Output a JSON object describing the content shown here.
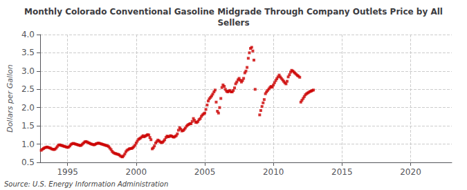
{
  "chart_data": {
    "type": "scatter",
    "title": "Monthly Colorado Conventional Gasoline Midgrade Through Company Outlets Price by All\nSellers",
    "ylabel": "Dollars per Gallon",
    "annotation": "Source: U.S. Energy Information Administration",
    "color": "#cc0000",
    "marker": "square",
    "grid": true,
    "xlim": [
      1993.0,
      2023.0
    ],
    "ylim": [
      0.5,
      4.0
    ],
    "xticks": [
      1995,
      2000,
      2005,
      2010,
      2015,
      2020
    ],
    "yticks": [
      0.5,
      {
        "value": 1.0,
        "label": "1.0"
      },
      1.5,
      {
        "value": 2.0,
        "label": "2.0"
      },
      2.5,
      {
        "value": 3.0,
        "label": "3.0"
      },
      3.5,
      {
        "value": 4.0,
        "label": "4.0"
      }
    ],
    "x": [
      1993.08,
      1993.17,
      1993.25,
      1993.33,
      1993.42,
      1993.5,
      1993.58,
      1993.67,
      1993.75,
      1993.83,
      1993.92,
      1994.0,
      1994.08,
      1994.17,
      1994.25,
      1994.33,
      1994.42,
      1994.5,
      1994.58,
      1994.67,
      1994.75,
      1994.83,
      1994.92,
      1995.0,
      1995.08,
      1995.17,
      1995.25,
      1995.33,
      1995.42,
      1995.5,
      1995.58,
      1995.67,
      1995.75,
      1995.83,
      1995.92,
      1996.0,
      1996.08,
      1996.17,
      1996.25,
      1996.33,
      1996.42,
      1996.5,
      1996.58,
      1996.67,
      1996.75,
      1996.83,
      1996.92,
      1997.0,
      1997.08,
      1997.17,
      1997.25,
      1997.33,
      1997.42,
      1997.5,
      1997.58,
      1997.67,
      1997.75,
      1997.83,
      1997.92,
      1998.0,
      1998.08,
      1998.17,
      1998.25,
      1998.33,
      1998.42,
      1998.5,
      1998.58,
      1998.67,
      1998.75,
      1998.83,
      1998.92,
      1999.0,
      1999.08,
      1999.17,
      1999.25,
      1999.33,
      1999.42,
      1999.5,
      1999.58,
      1999.67,
      1999.75,
      1999.83,
      1999.92,
      2000.0,
      2000.08,
      2000.17,
      2000.25,
      2000.33,
      2000.42,
      2000.5,
      2000.58,
      2000.67,
      2000.75,
      2000.83,
      2000.92,
      2001.0,
      2001.08,
      2001.17,
      2001.25,
      2001.33,
      2001.42,
      2001.5,
      2001.58,
      2001.67,
      2001.75,
      2001.83,
      2001.92,
      2002.0,
      2002.08,
      2002.17,
      2002.25,
      2002.33,
      2002.42,
      2002.5,
      2002.58,
      2002.67,
      2002.75,
      2002.83,
      2002.92,
      2003.0,
      2003.08,
      2003.17,
      2003.25,
      2003.33,
      2003.42,
      2003.5,
      2003.58,
      2003.67,
      2003.75,
      2003.83,
      2003.92,
      2004.0,
      2004.08,
      2004.17,
      2004.25,
      2004.33,
      2004.42,
      2004.5,
      2004.58,
      2004.67,
      2004.75,
      2004.83,
      2004.92,
      2005.0,
      2005.08,
      2005.17,
      2005.25,
      2005.33,
      2005.42,
      2005.5,
      2005.58,
      2005.67,
      2005.75,
      2005.83,
      2005.92,
      2006.0,
      2006.08,
      2006.17,
      2006.25,
      2006.33,
      2006.42,
      2006.5,
      2006.58,
      2006.67,
      2006.75,
      2006.83,
      2006.92,
      2007.0,
      2007.08,
      2007.17,
      2007.25,
      2007.33,
      2007.42,
      2007.5,
      2007.58,
      2007.67,
      2007.75,
      2007.83,
      2007.92,
      2008.0,
      2008.08,
      2008.17,
      2008.25,
      2008.33,
      2008.42,
      2008.5,
      2008.58,
      2008.67,
      2009.0,
      2009.08,
      2009.17,
      2009.25,
      2009.33,
      2009.42,
      2009.5,
      2009.58,
      2009.67,
      2009.75,
      2009.83,
      2009.92,
      2010.0,
      2010.08,
      2010.17,
      2010.25,
      2010.33,
      2010.42,
      2010.5,
      2010.58,
      2010.67,
      2010.75,
      2010.83,
      2010.92,
      2011.0,
      2011.08,
      2011.17,
      2011.25,
      2011.33,
      2011.42,
      2011.5,
      2011.58,
      2011.67,
      2011.75,
      2011.83,
      2011.92,
      2012.0,
      2012.08,
      2012.17,
      2012.25,
      2012.33,
      2012.42,
      2012.5,
      2012.58,
      2012.67,
      2012.75,
      2012.83,
      2012.92
    ],
    "values": [
      0.83,
      0.86,
      0.88,
      0.9,
      0.91,
      0.92,
      0.91,
      0.9,
      0.89,
      0.87,
      0.86,
      0.85,
      0.86,
      0.89,
      0.93,
      0.97,
      0.98,
      0.97,
      0.96,
      0.95,
      0.94,
      0.93,
      0.92,
      0.91,
      0.92,
      0.95,
      0.99,
      1.01,
      1.02,
      1.01,
      1.0,
      0.99,
      0.98,
      0.97,
      0.96,
      0.97,
      1.0,
      1.03,
      1.06,
      1.07,
      1.06,
      1.04,
      1.03,
      1.01,
      1.0,
      0.99,
      0.98,
      0.99,
      1.01,
      1.02,
      1.03,
      1.02,
      1.01,
      1.0,
      0.99,
      0.98,
      0.97,
      0.96,
      0.95,
      0.93,
      0.89,
      0.85,
      0.8,
      0.77,
      0.75,
      0.74,
      0.73,
      0.72,
      0.71,
      0.68,
      0.66,
      0.65,
      0.68,
      0.73,
      0.79,
      0.83,
      0.85,
      0.87,
      0.88,
      0.88,
      0.9,
      0.93,
      0.97,
      1.03,
      1.08,
      1.13,
      1.15,
      1.17,
      1.2,
      1.23,
      1.2,
      1.22,
      1.24,
      1.26,
      1.25,
      1.18,
      1.12,
      0.87,
      0.9,
      0.95,
      1.03,
      1.07,
      1.11,
      1.09,
      1.06,
      1.04,
      1.05,
      1.08,
      1.12,
      1.18,
      1.22,
      1.2,
      1.21,
      1.23,
      1.22,
      1.2,
      1.19,
      1.21,
      1.23,
      1.28,
      1.38,
      1.45,
      1.41,
      1.36,
      1.37,
      1.4,
      1.44,
      1.49,
      1.52,
      1.54,
      1.56,
      1.56,
      1.62,
      1.7,
      1.65,
      1.6,
      1.59,
      1.62,
      1.67,
      1.7,
      1.76,
      1.8,
      1.83,
      1.85,
      1.95,
      2.07,
      2.18,
      2.24,
      2.28,
      2.32,
      2.37,
      2.43,
      2.48,
      2.15,
      1.9,
      1.85,
      2.0,
      2.25,
      2.55,
      2.62,
      2.58,
      2.5,
      2.45,
      2.43,
      2.45,
      2.47,
      2.43,
      2.43,
      2.47,
      2.54,
      2.65,
      2.7,
      2.76,
      2.8,
      2.75,
      2.7,
      2.74,
      2.8,
      2.95,
      3.0,
      3.1,
      3.35,
      3.5,
      3.62,
      3.65,
      3.55,
      3.3,
      2.5,
      1.8,
      1.92,
      2.03,
      2.13,
      2.22,
      2.38,
      2.43,
      2.47,
      2.51,
      2.55,
      2.58,
      2.56,
      2.62,
      2.68,
      2.74,
      2.79,
      2.84,
      2.89,
      2.84,
      2.8,
      2.76,
      2.72,
      2.68,
      2.65,
      2.72,
      2.84,
      2.9,
      2.97,
      3.02,
      3.0,
      2.97,
      2.94,
      2.91,
      2.88,
      2.86,
      2.83,
      2.15,
      2.2,
      2.25,
      2.3,
      2.35,
      2.38,
      2.4,
      2.42,
      2.44,
      2.45,
      2.47,
      2.48
    ]
  }
}
